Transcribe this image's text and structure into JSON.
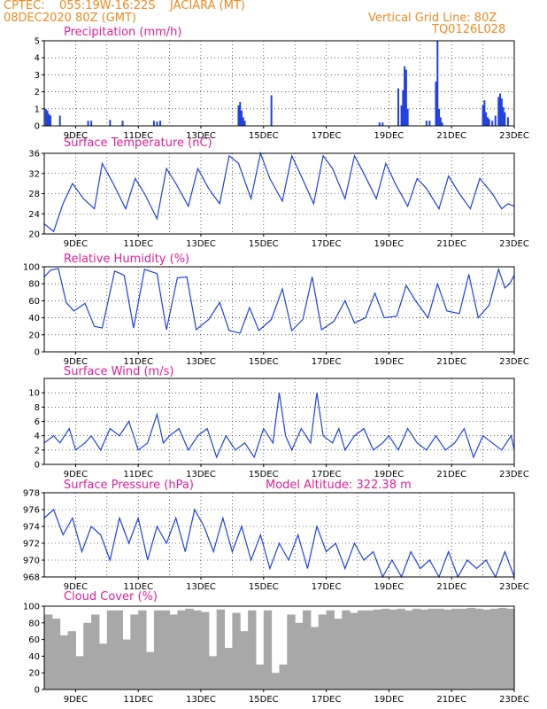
{
  "header": {
    "line1_left": "CPTEC:    055:19W-16:22S    JACIARA (MT)",
    "line2_left": "08DEC2020 80Z (GMT)",
    "line1_right": "Vertical Grid Line: 80Z",
    "line2_right": "TQ0126L028"
  },
  "colors": {
    "header": "#f08a1c",
    "title": "#e0209a",
    "line": "#2040e0",
    "cloud": "#a8a8a8"
  },
  "x_labels": [
    "9DEC",
    "11DEC",
    "13DEC",
    "15DEC",
    "17DEC",
    "19DEC",
    "21DEC",
    "23DEC"
  ],
  "chart_data": [
    {
      "type": "bar",
      "title": "Precipitation (mm/h)",
      "ylim": [
        0,
        5
      ],
      "yticks": [
        0,
        1,
        2,
        3,
        4,
        5
      ],
      "grid": true,
      "x": [
        8.05,
        8.1,
        8.15,
        8.2,
        8.5,
        9.4,
        9.5,
        10.1,
        10.5,
        11.5,
        11.6,
        11.7,
        14.2,
        14.25,
        14.3,
        14.35,
        14.4,
        15.25,
        18.7,
        18.8,
        19.3,
        19.4,
        19.45,
        19.5,
        19.55,
        19.6,
        20.2,
        20.3,
        20.5,
        20.55,
        20.6,
        20.65,
        20.7,
        22.0,
        22.05,
        22.1,
        22.15,
        22.2,
        22.3,
        22.4,
        22.5,
        22.55,
        22.6,
        22.65,
        22.7,
        22.8
      ],
      "values": [
        1.0,
        0.9,
        0.7,
        0.6,
        0.6,
        0.3,
        0.3,
        0.35,
        0.3,
        0.3,
        0.25,
        0.3,
        1.2,
        1.4,
        0.9,
        0.5,
        0.3,
        1.8,
        0.2,
        0.2,
        2.2,
        1.2,
        2.1,
        3.5,
        3.3,
        1.0,
        0.3,
        0.3,
        2.6,
        5.0,
        1.0,
        0.5,
        0.2,
        1.2,
        1.5,
        0.8,
        0.5,
        0.4,
        0.3,
        0.6,
        1.7,
        1.9,
        1.6,
        1.1,
        0.8,
        0.5
      ]
    },
    {
      "type": "line",
      "title": "Surface Temperature (nC)",
      "ylim": [
        20,
        36
      ],
      "yticks": [
        20,
        24,
        28,
        32,
        36
      ],
      "grid": true,
      "x": [
        8.0,
        8.3,
        8.6,
        8.9,
        9.25,
        9.6,
        9.85,
        10.2,
        10.6,
        10.9,
        11.2,
        11.6,
        11.9,
        12.2,
        12.6,
        12.9,
        13.25,
        13.6,
        13.9,
        14.2,
        14.6,
        14.9,
        15.2,
        15.6,
        15.9,
        16.2,
        16.6,
        16.9,
        17.2,
        17.6,
        17.9,
        18.2,
        18.6,
        18.9,
        19.2,
        19.6,
        19.9,
        20.2,
        20.6,
        20.9,
        21.25,
        21.6,
        21.9,
        22.3,
        22.6,
        22.8,
        23.0
      ],
      "values": [
        22,
        20.5,
        26,
        30,
        27,
        25,
        34,
        30,
        25,
        31,
        28,
        23,
        33,
        30,
        25.5,
        33,
        29,
        26,
        35.5,
        34,
        27,
        36,
        31,
        26.5,
        35.5,
        31.5,
        26,
        35.5,
        33,
        27,
        35.5,
        32,
        27,
        34,
        30,
        25.5,
        31,
        29,
        25,
        31.5,
        28,
        25,
        31,
        28,
        25,
        26,
        25.5
      ]
    },
    {
      "type": "line",
      "title": "Relative Humidity (%)",
      "ylim": [
        0,
        100
      ],
      "yticks": [
        0,
        20,
        40,
        60,
        80,
        100
      ],
      "grid": true,
      "x": [
        8.0,
        8.2,
        8.45,
        8.7,
        8.95,
        9.3,
        9.6,
        9.85,
        10.25,
        10.55,
        10.85,
        11.2,
        11.6,
        11.9,
        12.25,
        12.55,
        12.85,
        13.25,
        13.6,
        13.9,
        14.25,
        14.55,
        14.85,
        15.25,
        15.6,
        15.9,
        16.25,
        16.55,
        16.85,
        17.25,
        17.6,
        17.9,
        18.25,
        18.55,
        18.85,
        19.25,
        19.55,
        19.85,
        20.25,
        20.55,
        20.85,
        21.25,
        21.55,
        21.85,
        22.2,
        22.5,
        22.7,
        22.85,
        23.0
      ],
      "values": [
        88,
        96,
        98,
        58,
        48,
        57,
        30,
        28,
        95,
        90,
        28,
        97,
        92,
        26,
        87,
        88,
        26,
        38,
        58,
        25,
        22,
        52,
        25,
        38,
        74,
        25,
        38,
        88,
        26,
        36,
        60,
        34,
        40,
        69,
        40,
        42,
        78,
        60,
        40,
        80,
        48,
        45,
        91,
        40,
        55,
        97,
        75,
        80,
        90
      ]
    },
    {
      "type": "line",
      "title": "Surface Wind (m/s)",
      "ylim": [
        0,
        12
      ],
      "yticks": [
        0,
        2,
        4,
        6,
        8,
        10
      ],
      "grid": true,
      "x": [
        8.0,
        8.3,
        8.5,
        8.8,
        9.0,
        9.3,
        9.5,
        9.8,
        10.1,
        10.4,
        10.7,
        11.0,
        11.3,
        11.6,
        11.8,
        12.0,
        12.3,
        12.6,
        12.9,
        13.2,
        13.5,
        13.8,
        14.1,
        14.4,
        14.7,
        15.0,
        15.3,
        15.5,
        15.7,
        15.9,
        16.2,
        16.5,
        16.7,
        16.9,
        17.2,
        17.4,
        17.6,
        17.9,
        18.2,
        18.5,
        18.8,
        19.0,
        19.3,
        19.6,
        19.9,
        20.2,
        20.5,
        20.8,
        21.1,
        21.4,
        21.7,
        22.0,
        22.3,
        22.6,
        22.9,
        23.0
      ],
      "values": [
        3,
        4,
        3,
        5,
        2,
        3,
        4,
        2,
        5,
        4,
        6,
        2,
        3,
        7,
        3,
        4,
        5,
        2,
        4,
        5,
        1,
        4,
        2,
        3,
        1,
        5,
        3,
        10,
        4,
        2,
        5,
        3,
        10,
        4,
        3,
        5,
        2,
        4,
        5,
        2,
        3,
        4,
        2,
        5,
        3,
        2,
        4,
        2,
        3,
        5,
        1,
        4,
        3,
        2,
        4,
        2
      ]
    },
    {
      "type": "line",
      "title": "Surface Pressure (hPa)",
      "annotation": "Model Altitude: 322.38 m",
      "ylim": [
        968,
        978
      ],
      "yticks": [
        968,
        970,
        972,
        974,
        976,
        978
      ],
      "grid": true,
      "x": [
        8.0,
        8.3,
        8.6,
        8.9,
        9.2,
        9.5,
        9.8,
        10.1,
        10.4,
        10.7,
        11.0,
        11.3,
        11.6,
        11.9,
        12.2,
        12.5,
        12.8,
        13.1,
        13.4,
        13.7,
        14.0,
        14.3,
        14.6,
        14.9,
        15.2,
        15.5,
        15.8,
        16.1,
        16.4,
        16.7,
        17.0,
        17.3,
        17.6,
        17.9,
        18.2,
        18.5,
        18.8,
        19.1,
        19.4,
        19.7,
        20.0,
        20.3,
        20.6,
        20.9,
        21.2,
        21.5,
        21.8,
        22.1,
        22.4,
        22.7,
        23.0
      ],
      "values": [
        975,
        976,
        973,
        975,
        971,
        974,
        973,
        970,
        975,
        972,
        975,
        970,
        974,
        972,
        975,
        971,
        976,
        974,
        971,
        975,
        971,
        974,
        970,
        973,
        969,
        972,
        970,
        973,
        969,
        974,
        971,
        972,
        969,
        972,
        970,
        971,
        968,
        970,
        968,
        971,
        969,
        970,
        968,
        971,
        968,
        970,
        969,
        970,
        968,
        971,
        968
      ]
    },
    {
      "type": "bar",
      "title": "Cloud Cover (%)",
      "ylim": [
        0,
        100
      ],
      "yticks": [
        0,
        20,
        40,
        60,
        80,
        100
      ],
      "grid": false,
      "x": [
        8.0,
        8.25,
        8.5,
        8.75,
        9.0,
        9.25,
        9.5,
        9.75,
        10.0,
        10.25,
        10.5,
        10.75,
        11.0,
        11.25,
        11.5,
        11.75,
        12.0,
        12.25,
        12.5,
        12.75,
        13.0,
        13.25,
        13.5,
        13.75,
        14.0,
        14.25,
        14.5,
        14.75,
        15.0,
        15.25,
        15.5,
        15.75,
        16.0,
        16.25,
        16.5,
        16.75,
        17.0,
        17.25,
        17.5,
        17.75,
        18.0,
        18.25,
        18.5,
        18.75,
        19.0,
        19.25,
        19.5,
        19.75,
        20.0,
        20.25,
        20.5,
        20.75,
        21.0,
        21.25,
        21.5,
        21.75,
        22.0,
        22.25,
        22.5,
        22.75
      ],
      "values": [
        90,
        85,
        65,
        70,
        40,
        80,
        90,
        55,
        95,
        95,
        60,
        90,
        95,
        45,
        95,
        95,
        90,
        95,
        97,
        95,
        93,
        40,
        96,
        50,
        92,
        70,
        95,
        30,
        95,
        20,
        30,
        90,
        80,
        95,
        75,
        90,
        95,
        85,
        95,
        92,
        95,
        95,
        96,
        97,
        96,
        97,
        95,
        97,
        96,
        97,
        97,
        96,
        97,
        97,
        98,
        97,
        96,
        97,
        98,
        97
      ]
    }
  ]
}
